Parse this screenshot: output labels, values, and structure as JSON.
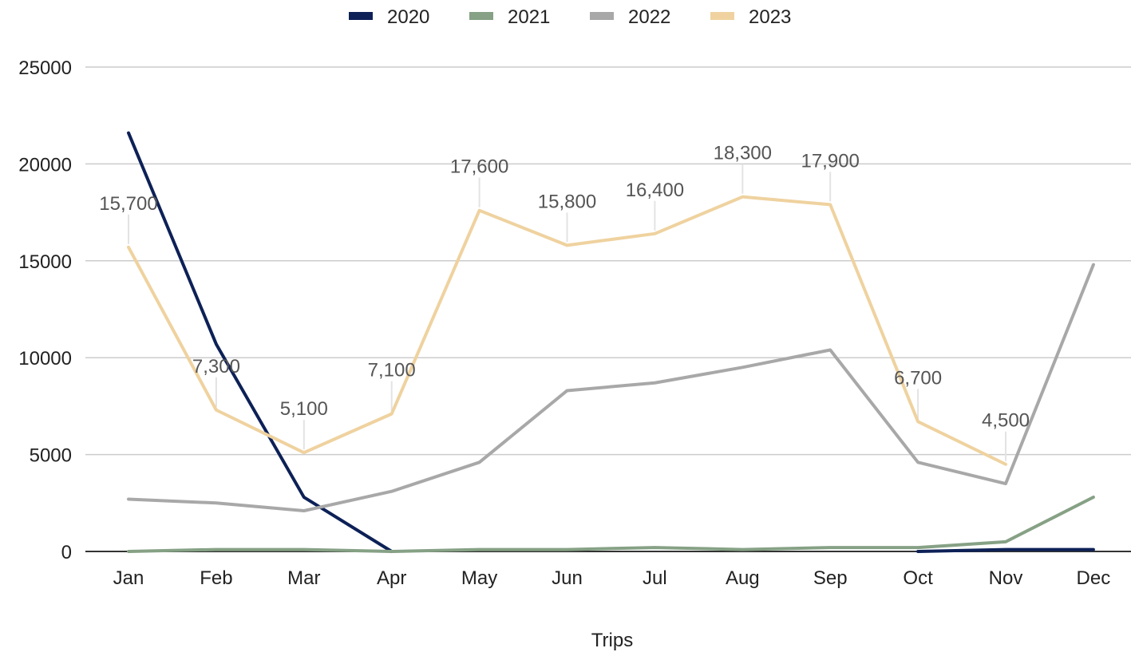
{
  "chart_data": {
    "type": "line",
    "title": "",
    "xlabel": "Trips",
    "ylabel": "",
    "ylim": [
      0,
      25000
    ],
    "yticks": [
      "0",
      "5000",
      "10000",
      "15000",
      "20000",
      "25000"
    ],
    "ytick_values": [
      0,
      5000,
      10000,
      15000,
      20000,
      25000
    ],
    "grid": true,
    "legend_position": "top-center",
    "categories": [
      "Jan",
      "Feb",
      "Mar",
      "Apr",
      "May",
      "Jun",
      "Jul",
      "Aug",
      "Sep",
      "Oct",
      "Nov",
      "Dec"
    ],
    "series": [
      {
        "name": "2020",
        "color": "#0d2157",
        "values": [
          21600,
          10700,
          2800,
          0,
          null,
          null,
          null,
          null,
          null,
          0,
          100,
          100
        ]
      },
      {
        "name": "2021",
        "color": "#86a185",
        "values": [
          0,
          100,
          100,
          0,
          100,
          100,
          200,
          100,
          200,
          200,
          500,
          2800
        ]
      },
      {
        "name": "2022",
        "color": "#a8a8a8",
        "values": [
          2700,
          2500,
          2100,
          3100,
          4600,
          8300,
          8700,
          9500,
          10400,
          4600,
          3500,
          14800
        ]
      },
      {
        "name": "2023",
        "color": "#efd29f",
        "values": [
          15700,
          7300,
          5100,
          7100,
          17600,
          15800,
          16400,
          18300,
          17900,
          6700,
          4500,
          null
        ],
        "data_labels": [
          "15,700",
          "7,300",
          "5,100",
          "7,100",
          "17,600",
          "15,800",
          "16,400",
          "18,300",
          "17,900",
          "6,700",
          "4,500",
          ""
        ]
      }
    ]
  }
}
